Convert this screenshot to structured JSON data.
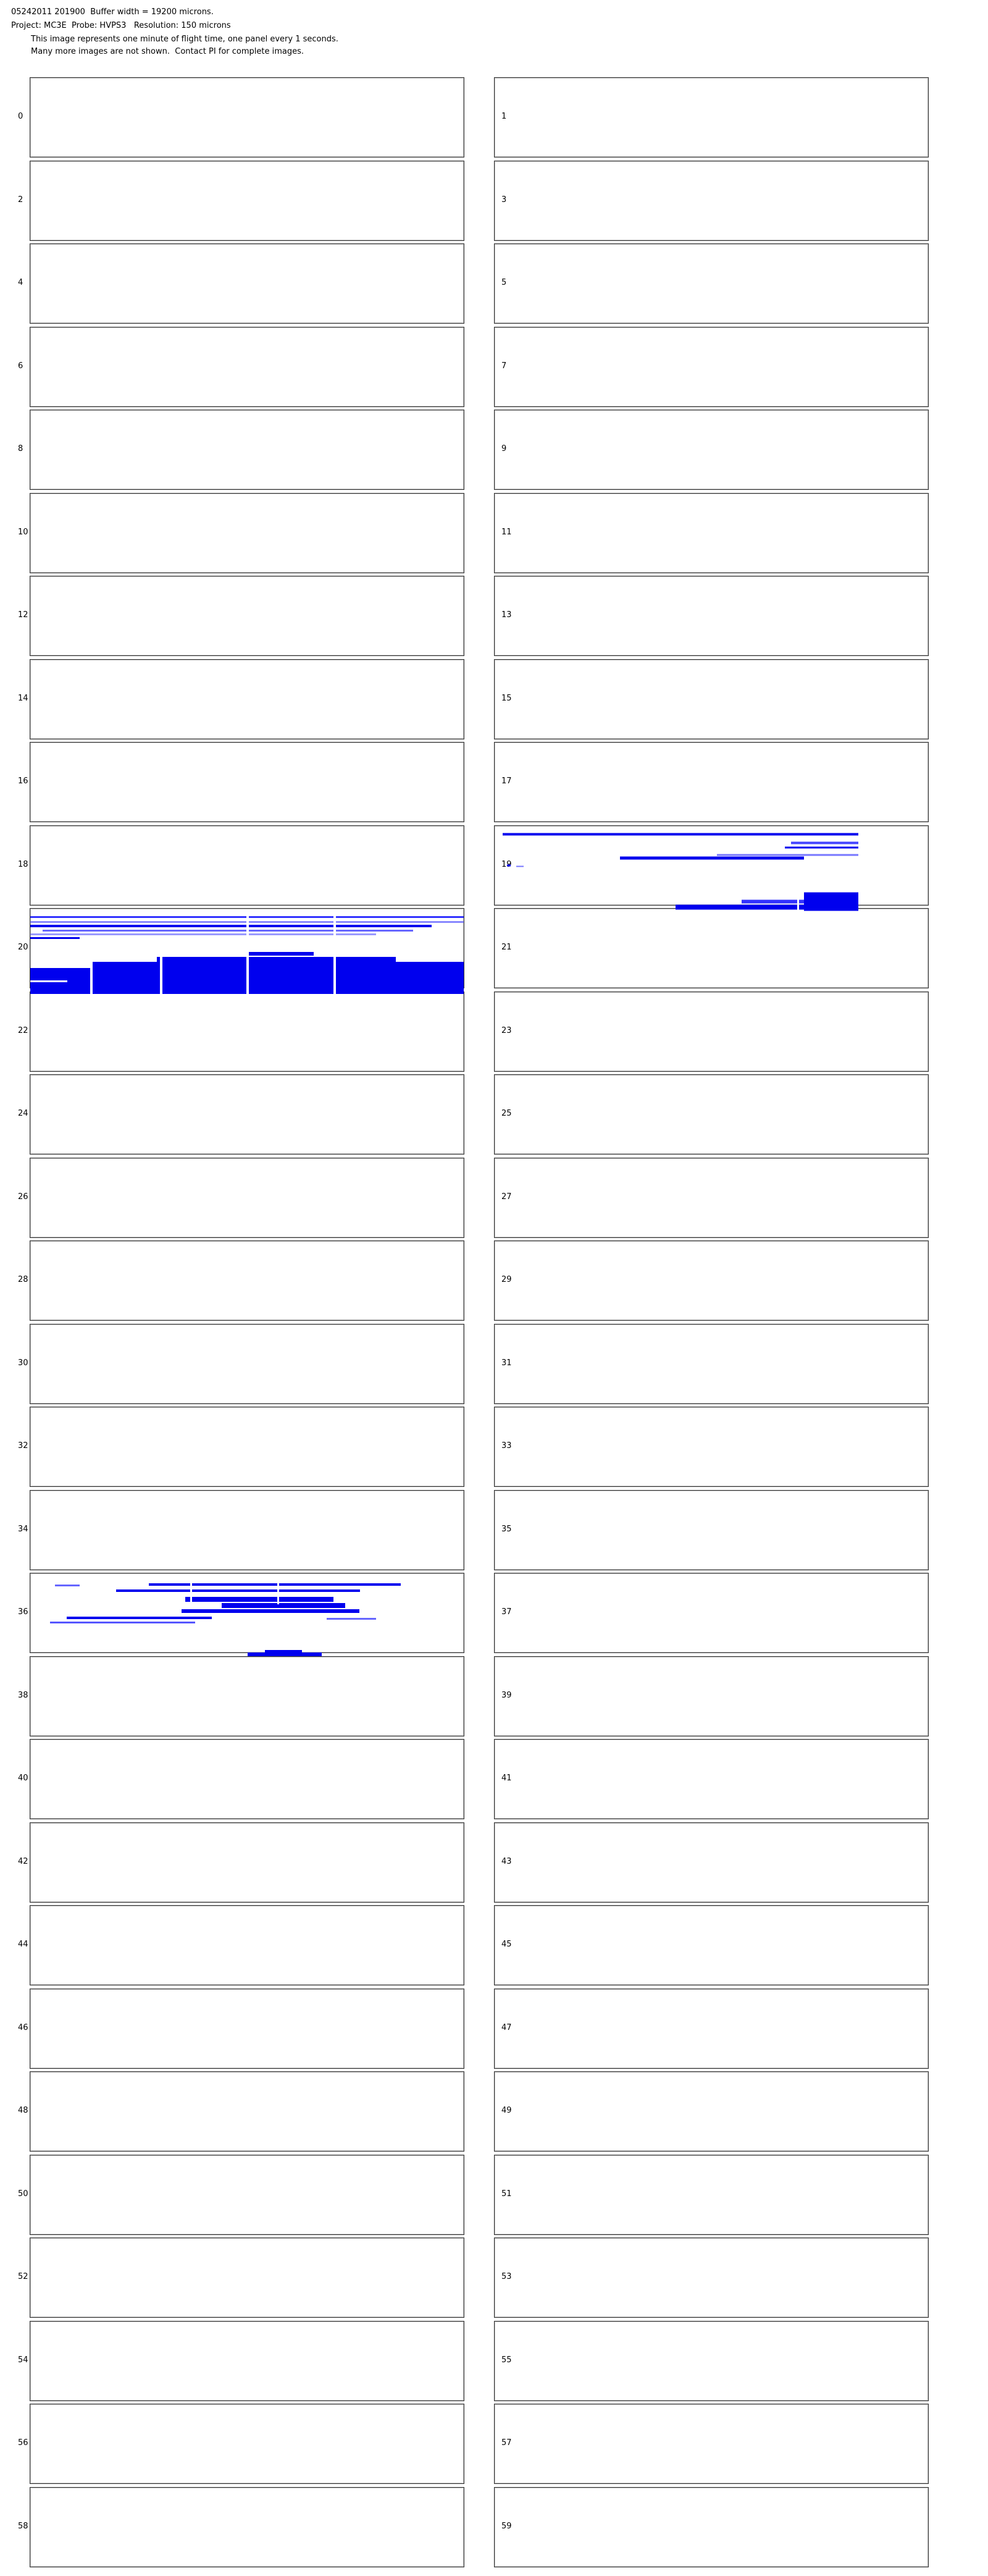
{
  "header": {
    "lines": [
      "05242011 201900  Buffer width = 19200 microns.",
      "Project: MC3E  Probe: HVPS3   Resolution: 150 microns",
      "This image represents one minute of flight time, one panel every 1 seconds.",
      "Many more images are not shown.  Contact PI for complete images."
    ]
  },
  "panels": [
    {
      "label": "0"
    },
    {
      "label": "1"
    },
    {
      "label": "2"
    },
    {
      "label": "3"
    },
    {
      "label": "4"
    },
    {
      "label": "5"
    },
    {
      "label": "6"
    },
    {
      "label": "7"
    },
    {
      "label": "8"
    },
    {
      "label": "9"
    },
    {
      "label": "10"
    },
    {
      "label": "11"
    },
    {
      "label": "12"
    },
    {
      "label": "13"
    },
    {
      "label": "14"
    },
    {
      "label": "15"
    },
    {
      "label": "16"
    },
    {
      "label": "17"
    },
    {
      "label": "18"
    },
    {
      "label": "19"
    },
    {
      "label": "20"
    },
    {
      "label": "21"
    },
    {
      "label": "22"
    },
    {
      "label": "23"
    },
    {
      "label": "24"
    },
    {
      "label": "25"
    },
    {
      "label": "26"
    },
    {
      "label": "27"
    },
    {
      "label": "28"
    },
    {
      "label": "29"
    },
    {
      "label": "30"
    },
    {
      "label": "31"
    },
    {
      "label": "32"
    },
    {
      "label": "33"
    },
    {
      "label": "34"
    },
    {
      "label": "35"
    },
    {
      "label": "36"
    },
    {
      "label": "37"
    },
    {
      "label": "38"
    },
    {
      "label": "39"
    },
    {
      "label": "40"
    },
    {
      "label": "41"
    },
    {
      "label": "42"
    },
    {
      "label": "43"
    },
    {
      "label": "44"
    },
    {
      "label": "45"
    },
    {
      "label": "46"
    },
    {
      "label": "47"
    },
    {
      "label": "48"
    },
    {
      "label": "49"
    },
    {
      "label": "50"
    },
    {
      "label": "51"
    },
    {
      "label": "52"
    },
    {
      "label": "53"
    },
    {
      "label": "54"
    },
    {
      "label": "55"
    },
    {
      "label": "56"
    },
    {
      "label": "57"
    },
    {
      "label": "58"
    },
    {
      "label": "59"
    }
  ]
}
